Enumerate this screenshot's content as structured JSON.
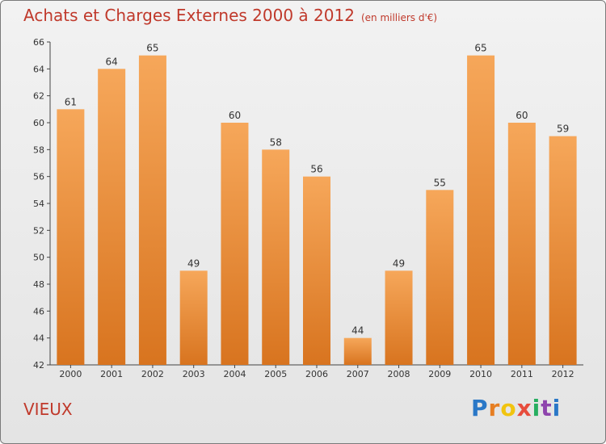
{
  "header": {
    "title": "Achats et Charges Externes 2000 à 2012",
    "unit": "(en milliers d'€)"
  },
  "footer": {
    "commune": "VIEUX",
    "brand": "Proxiti"
  },
  "colors": {
    "bar_top": "#f6a75a",
    "bar_bottom": "#d8741f",
    "title": "#c0392b",
    "axis": "#444444"
  },
  "chart_data": {
    "type": "bar",
    "title": "Achats et Charges Externes 2000 à 2012",
    "subtitle": "(en milliers d'€)",
    "xlabel": "",
    "ylabel": "",
    "categories": [
      "2000",
      "2001",
      "2002",
      "2003",
      "2004",
      "2005",
      "2006",
      "2007",
      "2008",
      "2009",
      "2010",
      "2011",
      "2012"
    ],
    "values": [
      61,
      64,
      65,
      49,
      60,
      58,
      56,
      44,
      49,
      55,
      65,
      60,
      59
    ],
    "ylim": [
      42,
      66
    ],
    "yticks": [
      42,
      44,
      46,
      48,
      50,
      52,
      54,
      56,
      58,
      60,
      62,
      64,
      66
    ],
    "grid": false,
    "legend": "none"
  }
}
